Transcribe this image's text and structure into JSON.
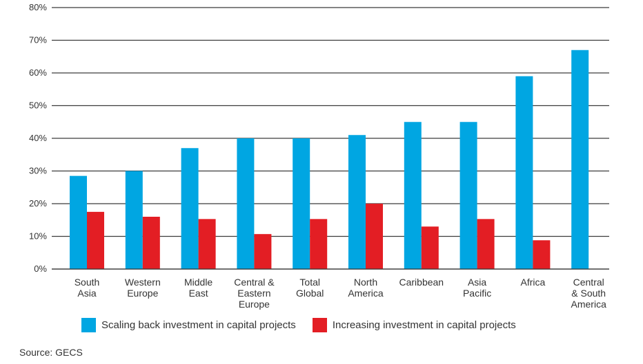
{
  "chart_data": {
    "type": "bar",
    "categories": [
      [
        "South",
        "Asia"
      ],
      [
        "Western",
        "Europe"
      ],
      [
        "Middle",
        "East"
      ],
      [
        "Central &",
        "Eastern",
        "Europe"
      ],
      [
        "Total",
        "Global"
      ],
      [
        "North",
        "America"
      ],
      [
        "Caribbean"
      ],
      [
        "Asia",
        "Pacific"
      ],
      [
        "Africa"
      ],
      [
        "Central",
        "& South",
        "America"
      ]
    ],
    "series": [
      {
        "name": "Scaling back investment in capital projects",
        "color": "#00a6e2",
        "values": [
          28.5,
          30,
          37,
          40,
          40,
          41,
          45,
          45,
          59,
          67
        ]
      },
      {
        "name": "Increasing investment in capital projects",
        "color": "#e31e24",
        "values": [
          17.5,
          16,
          15.3,
          10.7,
          15.3,
          20,
          13,
          15.3,
          8.8,
          null
        ]
      }
    ],
    "yticks": [
      "0%",
      "10%",
      "20%",
      "30%",
      "40%",
      "50%",
      "60%",
      "70%",
      "80%"
    ],
    "ylim": [
      0,
      80
    ],
    "grid": true,
    "legend_position": "bottom"
  },
  "legend": {
    "items": [
      {
        "label": "Scaling back investment in capital projects",
        "color": "#00a6e2"
      },
      {
        "label": "Increasing investment in capital projects",
        "color": "#e31e24"
      }
    ]
  },
  "source": "Source: GECS"
}
